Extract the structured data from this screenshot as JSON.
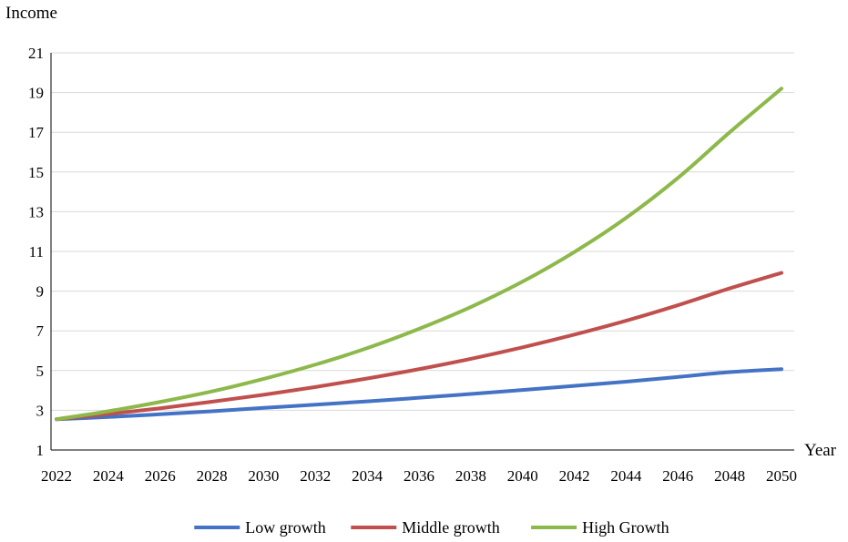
{
  "chart_data": {
    "type": "line",
    "title": "",
    "ylabel": "Income",
    "xlabel": "Year",
    "ylim": [
      1,
      21
    ],
    "yticks": [
      1,
      3,
      5,
      7,
      9,
      11,
      13,
      15,
      17,
      19,
      21
    ],
    "xlim": [
      2022,
      2050
    ],
    "xticks": [
      2022,
      2024,
      2026,
      2028,
      2030,
      2032,
      2034,
      2036,
      2038,
      2040,
      2042,
      2044,
      2046,
      2048,
      2050
    ],
    "grid": true,
    "legend": "bottom",
    "x": [
      2022,
      2024,
      2026,
      2028,
      2030,
      2032,
      2034,
      2036,
      2038,
      2040,
      2042,
      2044,
      2046,
      2048,
      2050
    ],
    "series": [
      {
        "name": "Low growth",
        "color": "#4472c4",
        "values": [
          2.55,
          2.66,
          2.8,
          2.95,
          3.12,
          3.28,
          3.45,
          3.63,
          3.82,
          4.02,
          4.23,
          4.44,
          4.68,
          4.92,
          5.07
        ]
      },
      {
        "name": "Middle growth",
        "color": "#c0504d",
        "values": [
          2.55,
          2.81,
          3.1,
          3.43,
          3.78,
          4.17,
          4.6,
          5.07,
          5.59,
          6.17,
          6.81,
          7.51,
          8.29,
          9.14,
          9.92
        ]
      },
      {
        "name": "High Growth",
        "color": "#8db84a",
        "values": [
          2.55,
          2.95,
          3.42,
          3.95,
          4.58,
          5.3,
          6.13,
          7.1,
          8.2,
          9.48,
          10.97,
          12.69,
          14.7,
          17.0,
          19.2
        ]
      }
    ]
  }
}
